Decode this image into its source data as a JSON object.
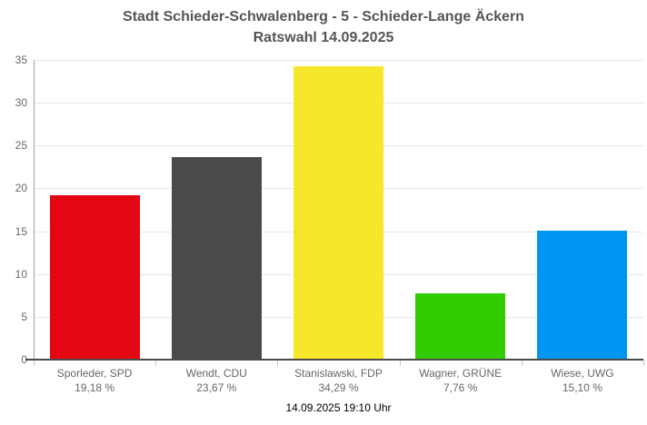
{
  "header": {
    "title": "Stadt Schieder-Schwalenberg - 5 - Schieder-Lange Äckern",
    "subtitle": "Ratswahl 14.09.2025"
  },
  "footer": {
    "timestamp": "14.09.2025 19:10 Uhr"
  },
  "chart_data": {
    "type": "bar",
    "title": "Stadt Schieder-Schwalenberg - 5 - Schieder-Lange Äckern",
    "subtitle": "Ratswahl 14.09.2025",
    "categories": [
      "Sporleder, SPD",
      "Wendt, CDU",
      "Stanislawski, FDP",
      "Wagner, GRÜNE",
      "Wiese, UWG"
    ],
    "values": [
      19.18,
      23.67,
      34.29,
      7.76,
      15.1
    ],
    "value_labels": [
      "19,18 %",
      "23,67 %",
      "34,29 %",
      "7,76 %",
      "15,10 %"
    ],
    "bar_colors": [
      "#e30613",
      "#4a4a4a",
      "#f6e72b",
      "#33cc00",
      "#0095f0"
    ],
    "ylim": [
      0,
      35
    ],
    "yticks": [
      0,
      5,
      10,
      15,
      20,
      25,
      30,
      35
    ],
    "xlabel": "",
    "ylabel": "",
    "grid": true,
    "legend": false,
    "footer": "14.09.2025 19:10 Uhr",
    "style": {
      "gridline_color": "#e6e6e6",
      "axis_line_color": "#4a4a4a",
      "y_axis_line_color": "#a3a3a3",
      "tick_color": "#c6c6c6",
      "label_color": "#666666",
      "title_color": "#555555"
    }
  }
}
